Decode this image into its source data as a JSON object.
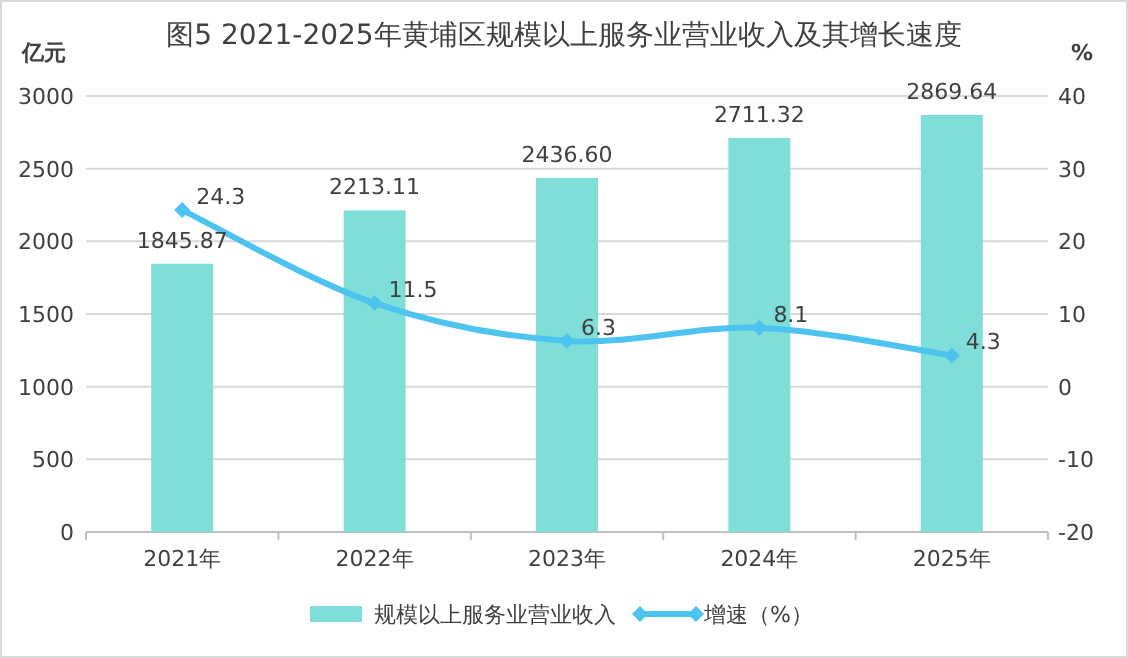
{
  "chart_data": {
    "type": "bar",
    "title": "图5  2021-2025年黄埔区规模以上服务业营业收入及其增长速度",
    "ylabel": "亿元",
    "y2label": "%",
    "categories": [
      "2021年",
      "2022年",
      "2023年",
      "2024年",
      "2025年"
    ],
    "series": [
      {
        "name": "规模以上服务业营业收入",
        "color": "#7fdfd8",
        "values": [
          1845.87,
          2213.11,
          2436.6,
          2711.32,
          2869.64
        ],
        "value_labels": [
          "1845.87",
          "2213.11",
          "2436.60",
          "2711.32",
          "2869.64"
        ]
      },
      {
        "name": "增速（%）",
        "type": "line",
        "axis": "y2",
        "color": "#4dc3f0",
        "marker": "diamond",
        "values": [
          24.3,
          11.5,
          6.3,
          8.1,
          4.3
        ]
      }
    ],
    "ylim": [
      0,
      3000
    ],
    "yticks": [
      0,
      500,
      1000,
      1500,
      2000,
      2500,
      3000
    ],
    "y2lim": [
      -20,
      40
    ],
    "y2ticks": [
      -20,
      -10,
      0,
      10,
      20,
      30,
      40
    ],
    "grid": "y",
    "data_labels": true,
    "legend": "bottom"
  }
}
